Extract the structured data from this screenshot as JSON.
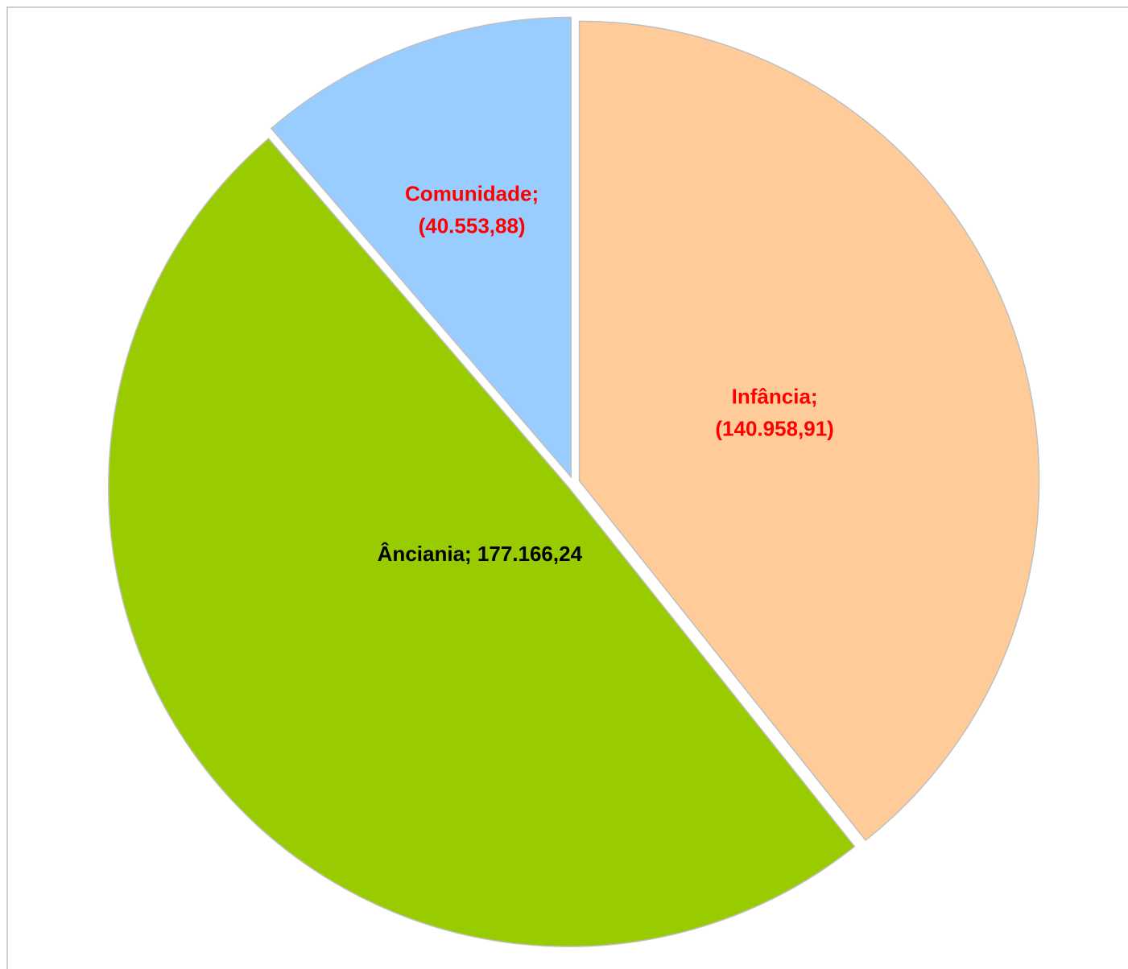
{
  "chart_data": {
    "type": "pie",
    "title": "",
    "slices": [
      {
        "name": "Infância",
        "value": 140958.91,
        "label_line1": "Infância;",
        "label_line2": "(140.958,91)",
        "color": "#FFCC99",
        "label_color": "#FF0000"
      },
      {
        "name": "Ânciania",
        "value": 177166.24,
        "label_line1": "Ânciania; 177.166,24",
        "label_line2": "",
        "color": "#99CC00",
        "label_color": "#000000"
      },
      {
        "name": "Comunidade",
        "value": 40553.88,
        "label_line1": "Comunidade;",
        "label_line2": "(40.553,88)",
        "color": "#99CCFF",
        "label_color": "#FF0000"
      }
    ],
    "legend": "none",
    "border_color": "#d0d0d0"
  }
}
